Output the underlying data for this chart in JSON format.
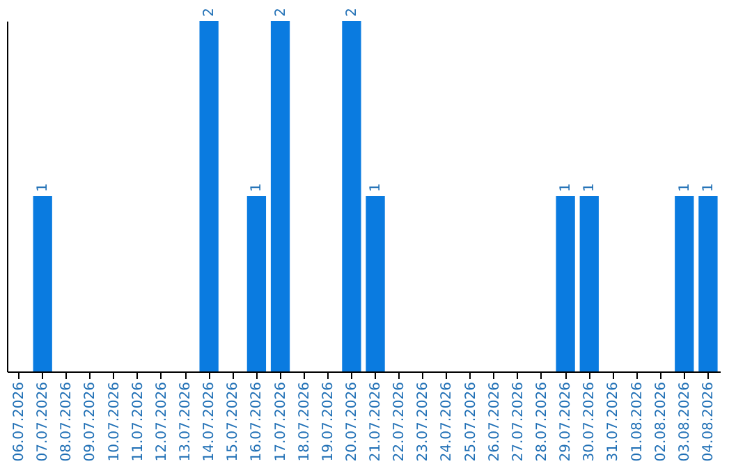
{
  "chart_data": {
    "type": "bar",
    "categories": [
      "06.07.2026",
      "07.07.2026",
      "08.07.2026",
      "09.07.2026",
      "10.07.2026",
      "11.07.2026",
      "12.07.2026",
      "13.07.2026",
      "14.07.2026",
      "15.07.2026",
      "16.07.2026",
      "17.07.2026",
      "18.07.2026",
      "19.07.2026",
      "20.07.2026",
      "21.07.2026",
      "22.07.2026",
      "23.07.2026",
      "24.07.2026",
      "25.07.2026",
      "26.07.2026",
      "27.07.2026",
      "28.07.2026",
      "29.07.2026",
      "30.07.2026",
      "31.07.2026",
      "01.08.2026",
      "02.08.2026",
      "03.08.2026",
      "04.08.2026"
    ],
    "values": [
      0,
      1,
      0,
      0,
      0,
      0,
      0,
      0,
      2,
      0,
      1,
      2,
      0,
      0,
      2,
      1,
      0,
      0,
      0,
      0,
      0,
      0,
      0,
      1,
      1,
      0,
      0,
      0,
      1,
      1
    ],
    "value_labels": [
      null,
      "1",
      null,
      null,
      null,
      null,
      null,
      null,
      "2",
      null,
      "1",
      "2",
      null,
      null,
      "2",
      "1",
      null,
      null,
      null,
      null,
      null,
      null,
      null,
      "1",
      "1",
      null,
      null,
      null,
      "1",
      "1"
    ],
    "color": "#0a7be0",
    "grid": false
  }
}
